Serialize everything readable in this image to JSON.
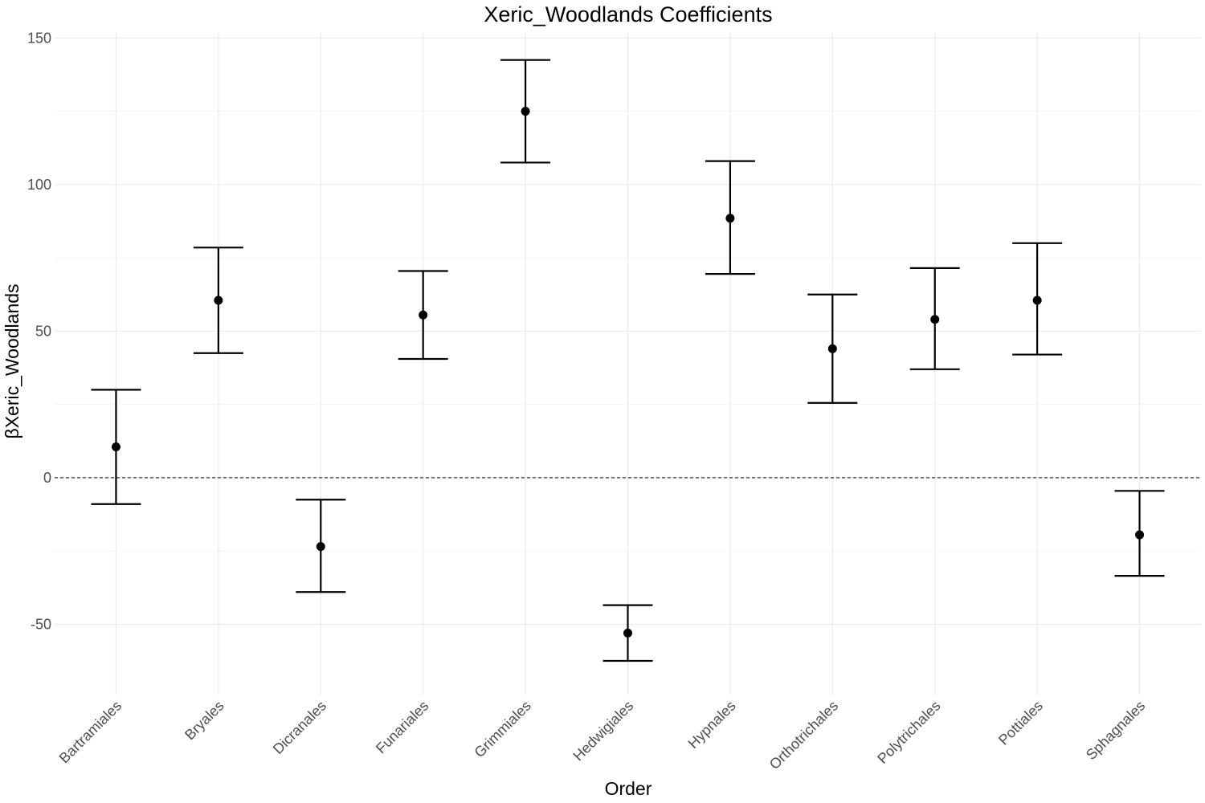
{
  "chart_data": {
    "type": "errorbar",
    "title": "Xeric_Woodlands Coefficients",
    "xlabel": "Order",
    "ylabel": "βXeric_Woodlands",
    "categories": [
      "Bartramiales",
      "Bryales",
      "Dicranales",
      "Funariales",
      "Grimmiales",
      "Hedwigiales",
      "Hypnales",
      "Orthotrichales",
      "Polytrichales",
      "Pottiales",
      "Sphagnales"
    ],
    "values": [
      10.5,
      60.5,
      -23.5,
      55.5,
      125,
      -53,
      88.5,
      44,
      54,
      60.5,
      -19.5
    ],
    "lower": [
      -9,
      42.5,
      -39,
      40.5,
      107.5,
      -62.5,
      69.5,
      25.5,
      37,
      42,
      -33.5
    ],
    "upper": [
      30,
      78.5,
      -7.5,
      70.5,
      142.5,
      -43.5,
      108,
      62.5,
      71.5,
      80,
      -4.5
    ],
    "ylim": [
      -74,
      152
    ],
    "yticks": [
      -50,
      0,
      50,
      100,
      150
    ],
    "reference_line": 0,
    "grid": true,
    "colors": {
      "point": "#000000",
      "grid_major": "#ebebeb",
      "grid_minor": "#f5f5f5",
      "reference": "#333333"
    }
  }
}
